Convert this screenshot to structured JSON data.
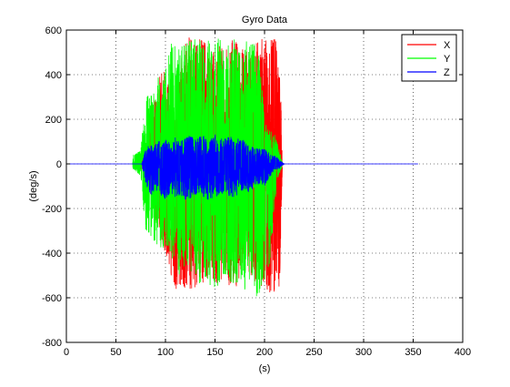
{
  "chart_data": {
    "type": "line",
    "title": "Gyro Data",
    "xlabel": "(s)",
    "ylabel": "(deg/s)",
    "xlim": [
      0,
      400
    ],
    "ylim": [
      -800,
      600
    ],
    "xticks": [
      0,
      50,
      100,
      150,
      200,
      250,
      300,
      350,
      400
    ],
    "yticks": [
      600,
      400,
      200,
      0,
      -200,
      -400,
      -600,
      -800
    ],
    "grid": true,
    "legend_position": "top-right",
    "series": [
      {
        "name": "X",
        "color": "#ff0000",
        "description": "dense oscillation",
        "x_range": [
          70,
          218
        ],
        "envelope": [
          [
            70,
            -10,
            10
          ],
          [
            80,
            -60,
            60
          ],
          [
            90,
            -250,
            300
          ],
          [
            95,
            -320,
            430
          ],
          [
            100,
            -420,
            420
          ],
          [
            105,
            -500,
            350
          ],
          [
            110,
            -580,
            200
          ],
          [
            115,
            -580,
            570
          ],
          [
            120,
            -560,
            560
          ],
          [
            125,
            -580,
            570
          ],
          [
            130,
            -580,
            560
          ],
          [
            135,
            -520,
            570
          ],
          [
            140,
            -560,
            560
          ],
          [
            145,
            -500,
            480
          ],
          [
            150,
            -530,
            520
          ],
          [
            155,
            -540,
            530
          ],
          [
            160,
            -470,
            500
          ],
          [
            165,
            -580,
            560
          ],
          [
            170,
            -580,
            570
          ],
          [
            175,
            -520,
            520
          ],
          [
            180,
            -540,
            520
          ],
          [
            185,
            -480,
            500
          ],
          [
            190,
            -560,
            540
          ],
          [
            195,
            -560,
            560
          ],
          [
            200,
            -580,
            570
          ],
          [
            205,
            -580,
            570
          ],
          [
            210,
            -580,
            570
          ],
          [
            215,
            -580,
            570
          ],
          [
            218,
            -10,
            10
          ]
        ]
      },
      {
        "name": "Y",
        "color": "#00ff00",
        "description": "dense oscillation",
        "x_range": [
          67,
          218
        ],
        "envelope": [
          [
            67,
            -20,
            40
          ],
          [
            75,
            -60,
            60
          ],
          [
            80,
            -300,
            300
          ],
          [
            85,
            -320,
            330
          ],
          [
            90,
            -360,
            380
          ],
          [
            95,
            -380,
            420
          ],
          [
            100,
            -380,
            430
          ],
          [
            105,
            -400,
            580
          ],
          [
            110,
            -480,
            540
          ],
          [
            115,
            -500,
            530
          ],
          [
            120,
            -460,
            560
          ],
          [
            125,
            -480,
            550
          ],
          [
            130,
            -500,
            570
          ],
          [
            135,
            -540,
            560
          ],
          [
            140,
            -520,
            540
          ],
          [
            145,
            -560,
            570
          ],
          [
            150,
            -560,
            580
          ],
          [
            155,
            -540,
            560
          ],
          [
            160,
            -500,
            520
          ],
          [
            165,
            -540,
            540
          ],
          [
            170,
            -560,
            560
          ],
          [
            175,
            -520,
            500
          ],
          [
            180,
            -580,
            560
          ],
          [
            185,
            -560,
            560
          ],
          [
            190,
            -590,
            540
          ],
          [
            195,
            -600,
            500
          ],
          [
            200,
            -540,
            200
          ],
          [
            205,
            -500,
            150
          ],
          [
            210,
            -180,
            140
          ],
          [
            215,
            -50,
            60
          ],
          [
            218,
            -10,
            10
          ]
        ]
      },
      {
        "name": "Z",
        "color": "#0000ff",
        "description": "baseline at 0 from 0 to 355 s with bursts between ~78 and 218 s",
        "x_range": [
          0,
          355
        ],
        "envelope": [
          [
            0,
            0,
            0
          ],
          [
            76,
            0,
            0
          ],
          [
            80,
            -90,
            70
          ],
          [
            85,
            -150,
            90
          ],
          [
            90,
            -120,
            90
          ],
          [
            95,
            -140,
            110
          ],
          [
            100,
            -160,
            110
          ],
          [
            105,
            -130,
            100
          ],
          [
            110,
            -150,
            120
          ],
          [
            115,
            -140,
            110
          ],
          [
            120,
            -170,
            120
          ],
          [
            125,
            -160,
            130
          ],
          [
            130,
            -140,
            110
          ],
          [
            135,
            -130,
            140
          ],
          [
            140,
            -160,
            120
          ],
          [
            145,
            -170,
            110
          ],
          [
            150,
            -150,
            140
          ],
          [
            155,
            -140,
            130
          ],
          [
            160,
            -130,
            120
          ],
          [
            165,
            -150,
            120
          ],
          [
            170,
            -160,
            130
          ],
          [
            175,
            -130,
            110
          ],
          [
            180,
            -120,
            110
          ],
          [
            185,
            -130,
            90
          ],
          [
            190,
            -100,
            80
          ],
          [
            195,
            -90,
            70
          ],
          [
            200,
            -100,
            70
          ],
          [
            205,
            -60,
            50
          ],
          [
            210,
            -30,
            40
          ],
          [
            215,
            -20,
            20
          ],
          [
            220,
            0,
            0
          ],
          [
            355,
            0,
            0
          ]
        ]
      }
    ]
  }
}
